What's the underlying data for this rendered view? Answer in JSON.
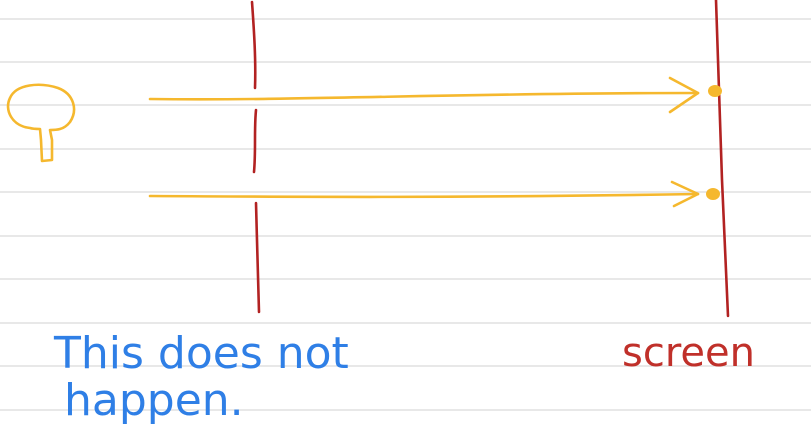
{
  "colors": {
    "paper": "#ffffff",
    "ruled_line": "#d9d9d9",
    "barrier": "#b22222",
    "ray": "#f5b82e",
    "annotation_blue": "#2f7fe6",
    "screen_label": "#c0302a"
  },
  "icons": {
    "source": "light-source-icon"
  },
  "annotation": {
    "line1": "This does not",
    "line2": "happen."
  },
  "screen_label": "screen"
}
